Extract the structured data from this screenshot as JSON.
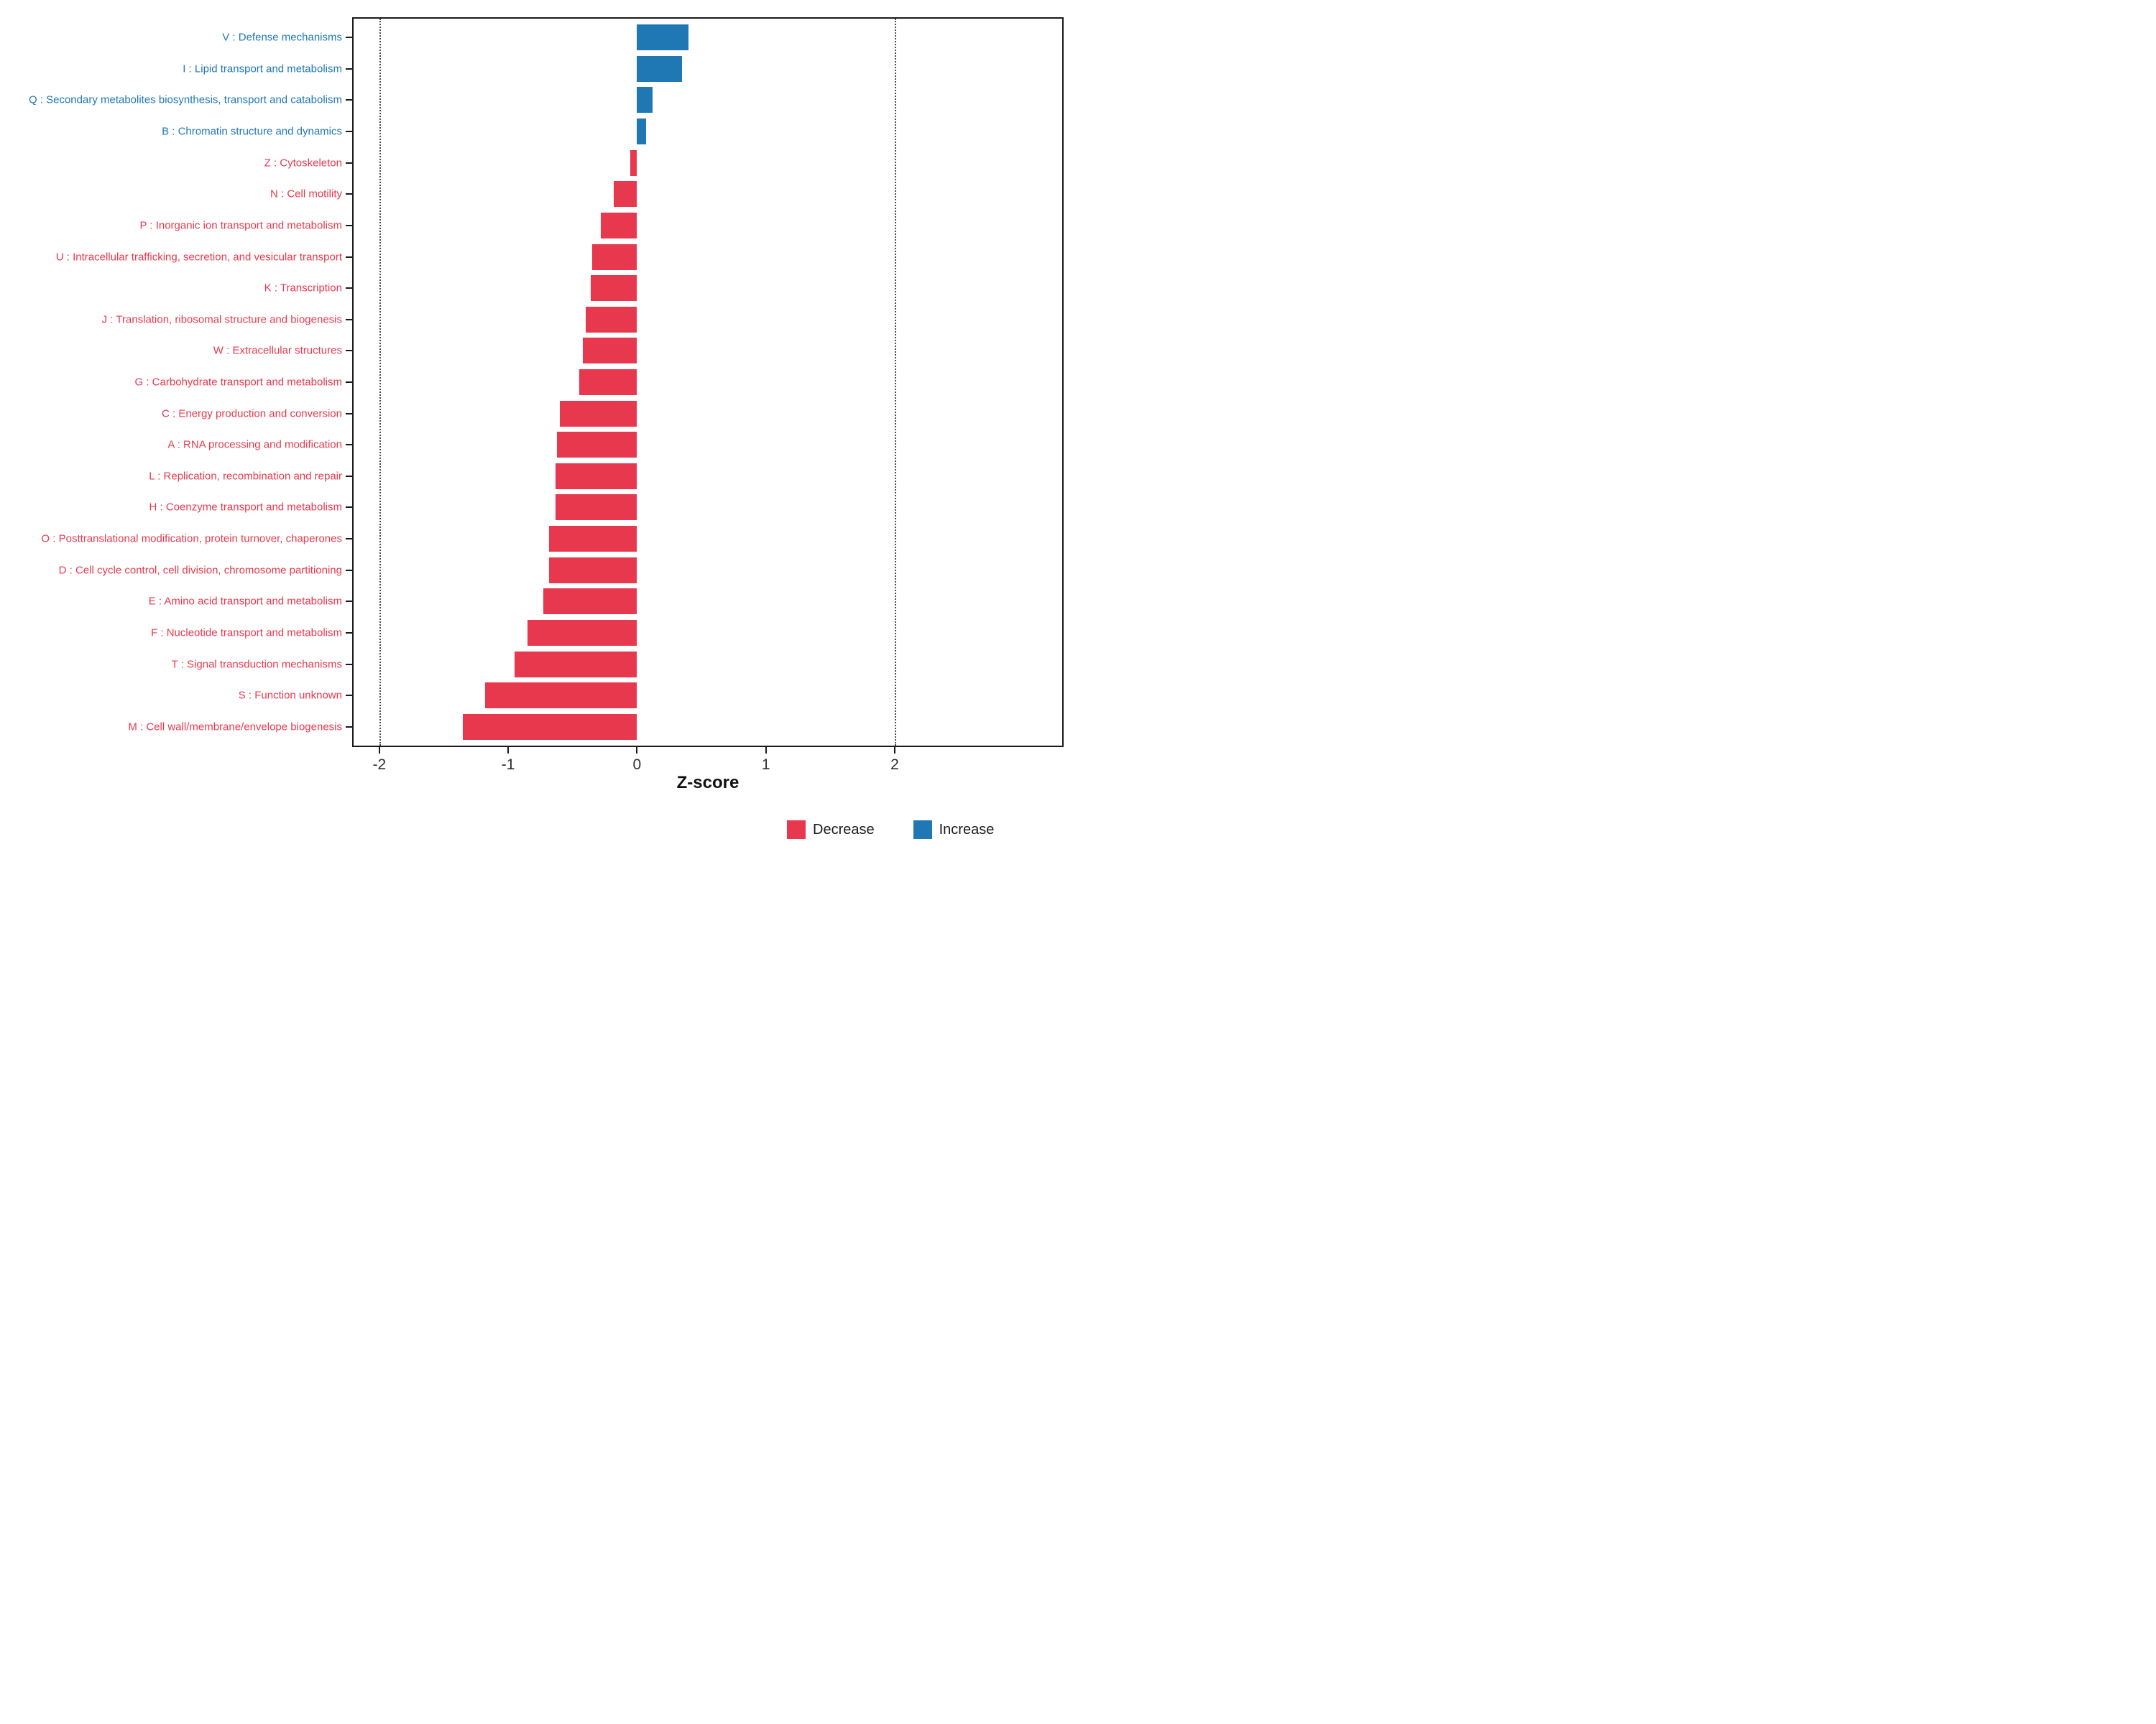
{
  "chart_data": {
    "type": "bar",
    "orientation": "horizontal",
    "title": "",
    "xlabel": "Z-score",
    "xlim": [
      -2.2,
      3.3
    ],
    "xticks": [
      -2,
      -1,
      0,
      1,
      2
    ],
    "xtick_labels": [
      "-2",
      "-1",
      "0",
      "1",
      "2"
    ],
    "reference_lines": [
      -2,
      2
    ],
    "grid": "off",
    "legend_position": "bottom-right",
    "colors": {
      "decrease": "#E8384E",
      "increase": "#1F78B4"
    },
    "categories": [
      {
        "label": "V : Defense mechanisms",
        "z": 0.4,
        "direction": "increase"
      },
      {
        "label": "I : Lipid transport and metabolism",
        "z": 0.35,
        "direction": "increase"
      },
      {
        "label": "Q : Secondary metabolites biosynthesis, transport and catabolism",
        "z": 0.12,
        "direction": "increase"
      },
      {
        "label": "B : Chromatin structure and dynamics",
        "z": 0.07,
        "direction": "increase"
      },
      {
        "label": "Z : Cytoskeleton",
        "z": -0.05,
        "direction": "decrease"
      },
      {
        "label": "N : Cell motility",
        "z": -0.18,
        "direction": "decrease"
      },
      {
        "label": "P : Inorganic ion transport and metabolism",
        "z": -0.28,
        "direction": "decrease"
      },
      {
        "label": "U : Intracellular trafficking, secretion, and vesicular transport",
        "z": -0.35,
        "direction": "decrease"
      },
      {
        "label": "K : Transcription",
        "z": -0.36,
        "direction": "decrease"
      },
      {
        "label": "J : Translation, ribosomal structure and biogenesis",
        "z": -0.4,
        "direction": "decrease"
      },
      {
        "label": "W : Extracellular structures",
        "z": -0.42,
        "direction": "decrease"
      },
      {
        "label": "G : Carbohydrate transport and metabolism",
        "z": -0.45,
        "direction": "decrease"
      },
      {
        "label": "C : Energy production and conversion",
        "z": -0.6,
        "direction": "decrease"
      },
      {
        "label": "A : RNA processing and modification",
        "z": -0.62,
        "direction": "decrease"
      },
      {
        "label": "L : Replication, recombination and repair",
        "z": -0.63,
        "direction": "decrease"
      },
      {
        "label": "H : Coenzyme transport and metabolism",
        "z": -0.63,
        "direction": "decrease"
      },
      {
        "label": "O : Posttranslational modification, protein turnover, chaperones",
        "z": -0.68,
        "direction": "decrease"
      },
      {
        "label": "D : Cell cycle control, cell division, chromosome partitioning",
        "z": -0.68,
        "direction": "decrease"
      },
      {
        "label": "E : Amino acid transport and metabolism",
        "z": -0.73,
        "direction": "decrease"
      },
      {
        "label": "F : Nucleotide transport and metabolism",
        "z": -0.85,
        "direction": "decrease"
      },
      {
        "label": "T : Signal transduction mechanisms",
        "z": -0.95,
        "direction": "decrease"
      },
      {
        "label": "S : Function unknown",
        "z": -1.18,
        "direction": "decrease"
      },
      {
        "label": "M : Cell wall/membrane/envelope biogenesis",
        "z": -1.35,
        "direction": "decrease"
      }
    ]
  },
  "legend": {
    "items": [
      {
        "label": "Decrease",
        "color": "#E8384E"
      },
      {
        "label": "Increase",
        "color": "#1F78B4"
      }
    ]
  }
}
